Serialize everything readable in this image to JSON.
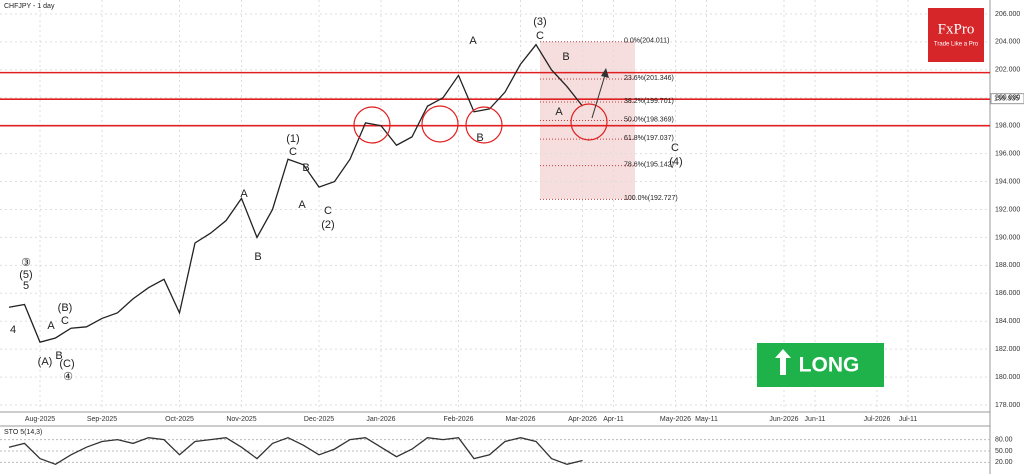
{
  "chart_data": {
    "type": "line",
    "title": "CHFJPY - 1 day",
    "categories": [
      null,
      null,
      "Aug-2025",
      null,
      null,
      null,
      "Sep-2025",
      null,
      null,
      null,
      null,
      "Oct-2025",
      null,
      null,
      null,
      "Nov-2025",
      null,
      null,
      null,
      null,
      "Dec-2025",
      null,
      null,
      null,
      "Jan-2026",
      null,
      null,
      null,
      null,
      "Feb-2026",
      null,
      null,
      null,
      "Mar-2026",
      null,
      null,
      null,
      "Apr-2026",
      null,
      "Apr-11",
      null,
      null,
      null,
      "May-2026",
      null,
      "May-11",
      null,
      null,
      null,
      null,
      "Jun-2026",
      null,
      "Jun-11",
      null,
      null,
      null,
      "Jul-2026",
      null,
      "Jul-11",
      null,
      null,
      null,
      null,
      null
    ],
    "values": [
      185,
      185.2,
      182.5,
      182.8,
      183.5,
      183.6,
      184.2,
      184.6,
      185.6,
      186.4,
      187,
      184.6,
      189.6,
      190.3,
      191.2,
      192.8,
      190,
      192,
      195.6,
      195.2,
      193.6,
      194,
      195.6,
      198.2,
      198,
      196.6,
      197.2,
      199.4,
      200,
      201.6,
      199,
      199.2,
      200.4,
      202.4,
      203.8,
      202,
      200.8,
      199.4,
      null,
      null,
      null,
      null,
      null,
      null,
      null,
      null,
      null,
      null,
      null,
      null,
      null,
      null,
      null,
      null,
      null,
      null,
      null,
      null,
      null,
      null,
      null,
      null,
      null,
      null
    ],
    "color": "#222222",
    "ylim": [
      177.5,
      207
    ],
    "yticks": [
      {
        "value": 178,
        "label": "178.000"
      },
      {
        "value": 180,
        "label": "180.000"
      },
      {
        "value": 182,
        "label": "182.000"
      },
      {
        "value": 184,
        "label": "184.000"
      },
      {
        "value": 186,
        "label": "186.000"
      },
      {
        "value": 188,
        "label": "188.000"
      },
      {
        "value": 190,
        "label": "190.000"
      },
      {
        "value": 192,
        "label": "192.000"
      },
      {
        "value": 194,
        "label": "194.000"
      },
      {
        "value": 196,
        "label": "196.000"
      },
      {
        "value": 198,
        "label": "198.000"
      },
      {
        "value": 200,
        "label": "200.000"
      },
      {
        "value": 202,
        "label": "202.000"
      },
      {
        "value": 204,
        "label": "204.000"
      },
      {
        "value": 206,
        "label": "206.000"
      }
    ],
    "grid": true,
    "current_price": {
      "value": 199.935,
      "label": "199.935"
    },
    "levels": [
      201.8,
      199.9,
      198.0
    ],
    "level_color": "#e02020",
    "fib_levels": [
      {
        "value": 204.011,
        "label": "0.0%(204.011)"
      },
      {
        "value": 201.346,
        "label": "23.6%(201.346)"
      },
      {
        "value": 199.701,
        "label": "38.2%(199.701)"
      },
      {
        "value": 198.369,
        "label": "50.0%(198.369)"
      },
      {
        "value": 197.037,
        "label": "61.8%(197.037)"
      },
      {
        "value": 195.142,
        "label": "78.6%(195.142)"
      },
      {
        "value": 192.727,
        "label": "100.0%(192.727)"
      }
    ],
    "wave_labels": [
      "(3)",
      "C",
      "A",
      "B",
      "A",
      "C",
      "(4)",
      "(1)",
      "C",
      "B",
      "A",
      "A",
      "C",
      "(2)",
      "B",
      "B",
      "③",
      "(5)",
      "5",
      "4",
      "A",
      "(B)",
      "C",
      "B",
      "(A)",
      "(C)",
      "④"
    ],
    "indicator": {
      "title": "STO 5(14,3)",
      "values": [
        60,
        70,
        30,
        15,
        40,
        60,
        75,
        80,
        70,
        85,
        80,
        40,
        75,
        80,
        85,
        60,
        30,
        70,
        85,
        65,
        40,
        55,
        80,
        85,
        60,
        35,
        55,
        85,
        80,
        85,
        30,
        40,
        75,
        85,
        75,
        30,
        15,
        25
      ],
      "color": "#333333",
      "ylim": [
        0,
        100
      ],
      "yticks": [
        {
          "value": 20,
          "label": "20.00"
        },
        {
          "value": 50,
          "label": "50.00"
        },
        {
          "value": 80,
          "label": "80.00"
        }
      ]
    },
    "brand": {
      "name": "FxPro",
      "tagline": "Trade Like a Pro"
    },
    "signal": "LONG"
  }
}
